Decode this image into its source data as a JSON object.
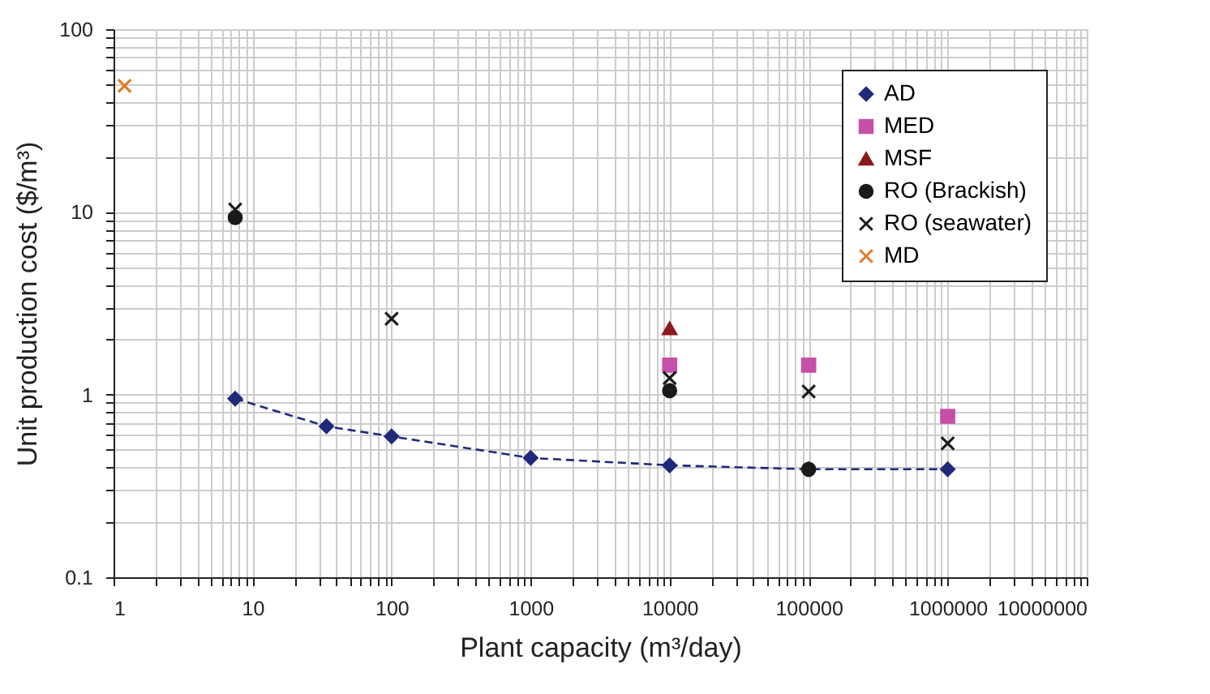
{
  "chart_data": {
    "type": "scatter",
    "xlabel": "Plant capacity (m³/day)",
    "ylabel": "Unit production cost ($/m³)",
    "log": "xy",
    "grid": true,
    "legend": "top right",
    "xlim": [
      1,
      10000000
    ],
    "xticks": [
      1,
      10,
      100,
      1000,
      10000,
      100000,
      1000000,
      10000000
    ],
    "ylim": [
      0.1,
      100
    ],
    "yticks": [
      0.1,
      1,
      10,
      100
    ],
    "series": [
      {
        "name": "AD",
        "type": "line",
        "color": "#1f2a7a",
        "marker": "diamond",
        "line_style": "dashed",
        "x": [
          7.5,
          34,
          100,
          1000,
          10000,
          100000,
          1000000
        ],
        "values": [
          0.95,
          0.67,
          0.59,
          0.45,
          0.41,
          0.39,
          0.39
        ]
      },
      {
        "name": "MED",
        "type": "scatter",
        "color": "#c64fa8",
        "marker": "square",
        "x": [
          10000,
          100000,
          1000000
        ],
        "values": [
          1.45,
          1.45,
          0.76
        ]
      },
      {
        "name": "MSF",
        "type": "scatter",
        "color": "#8b1a1a",
        "marker": "triangle",
        "x": [
          10000
        ],
        "values": [
          2.3
        ]
      },
      {
        "name": "RO (Brackish)",
        "type": "scatter",
        "color": "#1a1a1a",
        "marker": "circle",
        "x": [
          7.5,
          10000,
          100000
        ],
        "values": [
          9.3,
          1.05,
          0.39
        ]
      },
      {
        "name": "RO (seawater)",
        "type": "scatter",
        "color": "#1a1a1a",
        "marker": "cross",
        "x": [
          7.5,
          100,
          10000,
          100000,
          1000000
        ],
        "values": [
          10.3,
          2.6,
          1.23,
          1.04,
          0.54
        ]
      },
      {
        "name": "MD",
        "type": "scatter",
        "color": "#e07b2a",
        "marker": "cross",
        "x": [
          1.2
        ],
        "values": [
          49
        ]
      }
    ]
  }
}
